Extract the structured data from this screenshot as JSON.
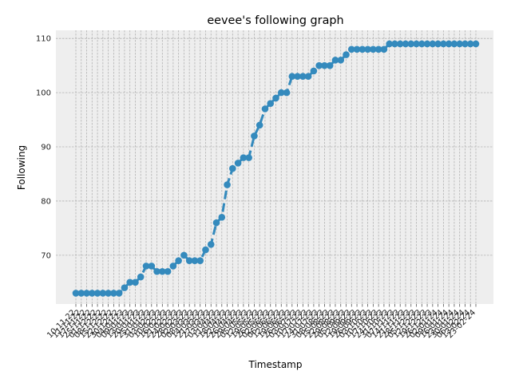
{
  "chart_data": {
    "type": "line",
    "title": "eevee's following graph",
    "xlabel": "Timestamp",
    "ylabel": "Following",
    "ylim": [
      61,
      111.5
    ],
    "yticks": [
      70,
      80,
      90,
      100,
      110
    ],
    "grid": true,
    "style": "bmh",
    "colors": {
      "series": "#348ABD",
      "background": "#EEEEEE",
      "grid": "#B2B2B2"
    },
    "x": [
      "10-11-22",
      "11-11-22",
      "17-11-22",
      "25-11-22",
      "01-12-22",
      "08-12-22",
      "15-12-22",
      "22-12-22",
      "30-12-22",
      "04-01-23",
      "09-01-23",
      "13-01-23",
      "20-01-23",
      "25-01-23",
      "31-01-23",
      "03-02-23",
      "10-02-23",
      "16-02-23",
      "21-02-23",
      "24-02-23",
      "28-02-23",
      "02-03-23",
      "08-03-23",
      "14-03-23",
      "21-03-23",
      "27-03-23",
      "03-04-23",
      "11-04-23",
      "18-04-23",
      "22-04-23",
      "26-04-23",
      "29-04-23",
      "05-05-23",
      "12-05-23",
      "19-05-23",
      "26-05-23",
      "02-06-23",
      "06-06-23",
      "12-06-23",
      "19-06-23",
      "26-06-23",
      "03-07-23",
      "10-07-23",
      "17-07-23",
      "24-07-23",
      "31-07-23",
      "08-08-23",
      "15-08-23",
      "22-08-23",
      "29-08-23",
      "05-09-23",
      "12-09-23",
      "19-09-23",
      "26-09-23",
      "03-10-23",
      "10-10-23",
      "17-10-23",
      "24-10-23",
      "31-10-23",
      "07-11-23",
      "14-11-23",
      "21-11-23",
      "28-11-23",
      "05-12-23",
      "12-12-23",
      "19-12-23",
      "26-12-23",
      "02-01-24",
      "09-01-24",
      "16-01-24",
      "23-01-24",
      "30-01-24",
      "06-02-24",
      "13-02-24",
      "23-02-24"
    ],
    "series": [
      {
        "name": "",
        "values": [
          63,
          63,
          63,
          63,
          63,
          63,
          63,
          63,
          63,
          64,
          65,
          65,
          66,
          68,
          68,
          67,
          67,
          67,
          68,
          69,
          70,
          69,
          69,
          69,
          71,
          72,
          76,
          77,
          83,
          86,
          87,
          88,
          88,
          92,
          94,
          97,
          98,
          99,
          100,
          100,
          103,
          103,
          103,
          103,
          104,
          105,
          105,
          105,
          106,
          106,
          107,
          108,
          108,
          108,
          108,
          108,
          108,
          108,
          109,
          109,
          109,
          109,
          109,
          109,
          109,
          109,
          109,
          109,
          109,
          109,
          109,
          109,
          109,
          109,
          109
        ]
      }
    ]
  }
}
